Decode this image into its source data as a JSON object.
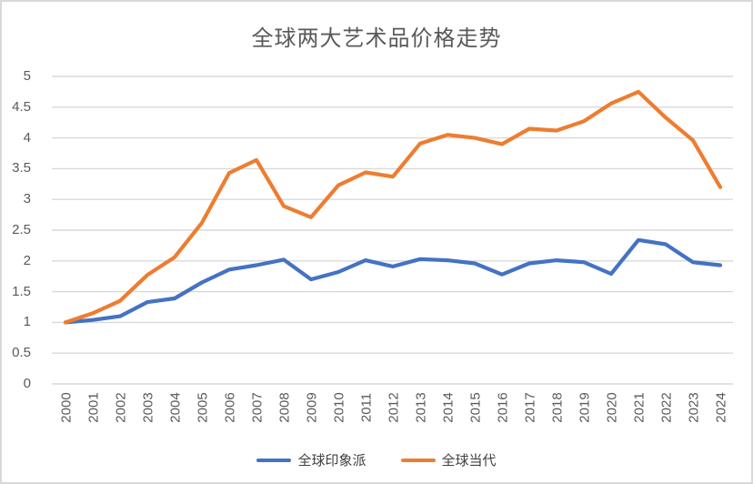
{
  "title": "全球两大艺术品价格走势",
  "colors": {
    "impressionist_line": "#4472C4",
    "contemporary_line": "#ED7D31",
    "gridline": "#D9D9D9",
    "axis_text": "#595959",
    "title_text": "#595959",
    "frame_border": "#D9D9D9",
    "background": "#FFFFFF"
  },
  "chart_data": {
    "type": "line",
    "title": "全球两大艺术品价格走势",
    "categories": [
      2000,
      2001,
      2002,
      2003,
      2004,
      2005,
      2006,
      2007,
      2008,
      2009,
      2010,
      2011,
      2012,
      2013,
      2014,
      2015,
      2016,
      2017,
      2018,
      2019,
      2020,
      2021,
      2022,
      2023,
      2024
    ],
    "series": [
      {
        "name": "全球印象派",
        "color": "#4472C4",
        "values": [
          1.0,
          1.04,
          1.1,
          1.33,
          1.39,
          1.65,
          1.86,
          1.93,
          2.02,
          1.7,
          1.82,
          2.01,
          1.91,
          2.03,
          2.01,
          1.96,
          1.78,
          1.96,
          2.01,
          1.98,
          1.79,
          2.34,
          2.27,
          1.98,
          1.93
        ]
      },
      {
        "name": "全球当代",
        "color": "#ED7D31",
        "values": [
          1.0,
          1.15,
          1.35,
          1.77,
          2.06,
          2.62,
          3.43,
          3.64,
          2.89,
          2.71,
          3.23,
          3.44,
          3.37,
          3.91,
          4.05,
          4.0,
          3.9,
          4.15,
          4.12,
          4.27,
          4.56,
          4.75,
          4.33,
          3.96,
          3.2
        ]
      }
    ],
    "xlabel": "",
    "ylabel": "",
    "ylim": [
      0,
      5
    ],
    "ytick_step": 0.5,
    "grid": true,
    "legend_position": "bottom"
  }
}
